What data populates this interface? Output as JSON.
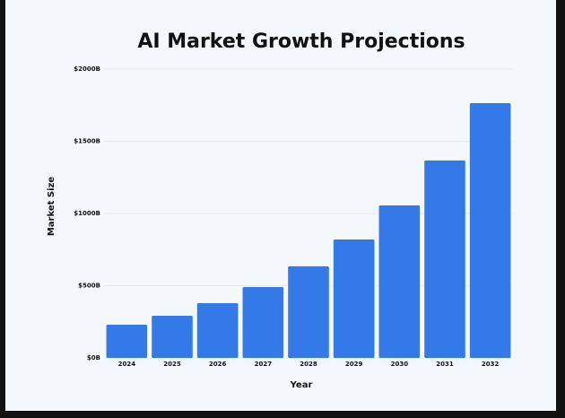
{
  "chart_data": {
    "type": "bar",
    "title": "AI Market Growth Projections",
    "x_label": "Year",
    "y_label": "Market Size",
    "categories": [
      "2024",
      "2025",
      "2026",
      "2027",
      "2028",
      "2029",
      "2030",
      "2031",
      "2032"
    ],
    "values": [
      230,
      292,
      379,
      491,
      634,
      820,
      1056,
      1367,
      1764
    ],
    "color": "#3479e8",
    "ylim": [
      0,
      2000
    ],
    "yticks": [
      {
        "value": 0,
        "label": "$0B"
      },
      {
        "value": 500,
        "label": "$500B"
      },
      {
        "value": 1000,
        "label": "$1000B"
      },
      {
        "value": 1500,
        "label": "$1500B"
      },
      {
        "value": 2000,
        "label": "$2000B"
      }
    ],
    "grid": true
  }
}
